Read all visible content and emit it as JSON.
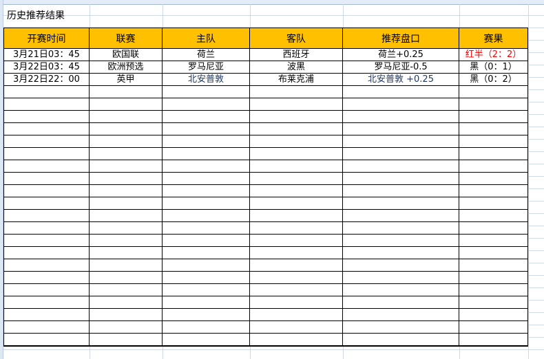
{
  "sheet_title": "历史推荐结果",
  "columns": [
    "开赛时间",
    "联赛",
    "主队",
    "客队",
    "推荐盘口",
    "赛果"
  ],
  "rows": [
    {
      "time": "3月21日03：45",
      "league": "欧国联",
      "home": "荷兰",
      "away": "西班牙",
      "pick": "荷兰+0.25",
      "result": "红半（2：2）",
      "result_color": "#ff0000"
    },
    {
      "time": "3月22日03：45",
      "league": "欧洲预选",
      "home": "罗马尼亚",
      "away": "波黑",
      "pick": "罗马尼亚-0.5",
      "result": "黑（0：1）",
      "result_color": "#000000"
    },
    {
      "time": "3月22日22：00",
      "league": "英甲",
      "home": "北安普敦",
      "away": "布莱克浦",
      "pick": "北安普敦 +0.25",
      "result": "黑（0：2）",
      "result_color": "#000000"
    }
  ],
  "empty_row_count": 21,
  "colors": {
    "header_bg": "#ffc000",
    "win": "#ff0000",
    "loss": "#000000"
  }
}
